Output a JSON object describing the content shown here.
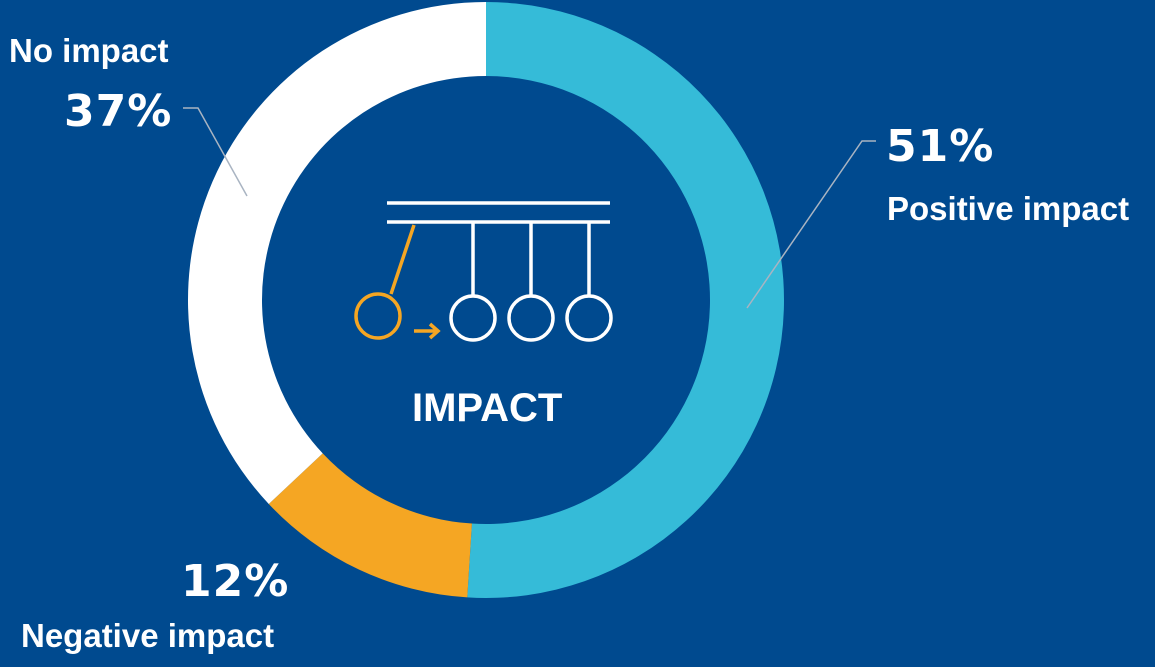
{
  "chart_data": {
    "type": "pie",
    "center_label": "IMPACT",
    "slices": [
      {
        "label": "Positive impact",
        "value": 51,
        "value_label": "51%",
        "color": "#35bbd8"
      },
      {
        "label": "Negative impact",
        "value": 12,
        "value_label": "12%",
        "color": "#f5a623"
      },
      {
        "label": "No impact",
        "value": 37,
        "value_label": "37%",
        "color": "#ffffff"
      }
    ]
  },
  "colors": {
    "background": "#004a8f",
    "leader_line": "#a9b4c2",
    "icon_accent": "#f5a623",
    "icon_main": "#ffffff"
  },
  "center_icon": "newtons-cradle-icon"
}
